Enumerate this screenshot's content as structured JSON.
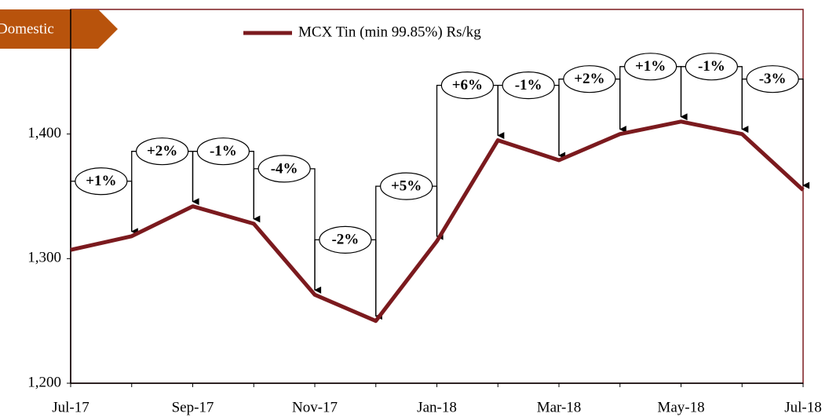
{
  "banner": "Domestic",
  "chart_data": {
    "type": "line",
    "categories": [
      "Jul-17",
      null,
      "Sep-17",
      null,
      "Nov-17",
      null,
      "Jan-18",
      null,
      "Mar-18",
      null,
      "May-18",
      null,
      "Jul-18"
    ],
    "series": [
      {
        "name": "MCX Tin (min 99.85%) Rs/kg",
        "color": "#7b1a1e",
        "values": [
          1307,
          1318,
          1342,
          1328,
          1271,
          1250,
          1314,
          1395,
          1379,
          1400,
          1410,
          1400,
          1355
        ]
      }
    ],
    "annotations": [
      "+1%",
      "+2%",
      "-1%",
      "-4%",
      "-2%",
      "+5%",
      "+6%",
      "-1%",
      "+2%",
      "+1%",
      "-1%",
      "-3%"
    ],
    "ylim": [
      1200,
      1500
    ],
    "yticks": [
      {
        "value": 1200,
        "label": "1,200"
      },
      {
        "value": 1300,
        "label": "1,300"
      },
      {
        "value": 1400,
        "label": "1,400"
      }
    ]
  }
}
